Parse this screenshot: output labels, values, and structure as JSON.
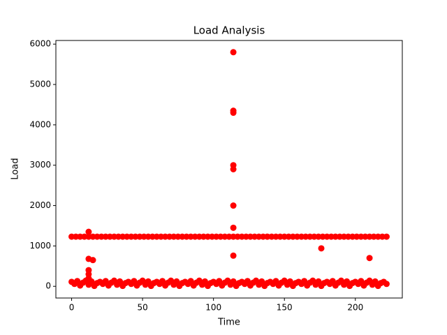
{
  "chart_data": {
    "type": "scatter",
    "title": "Load Analysis",
    "xlabel": "Time",
    "ylabel": "Load",
    "color": "#ff0000",
    "x": [
      0,
      3,
      6,
      9,
      12,
      15,
      18,
      21,
      24,
      27,
      30,
      33,
      36,
      39,
      42,
      45,
      48,
      51,
      54,
      57,
      60,
      63,
      66,
      69,
      72,
      75,
      78,
      81,
      84,
      87,
      90,
      93,
      96,
      99,
      102,
      105,
      108,
      111,
      114,
      117,
      120,
      123,
      126,
      129,
      132,
      135,
      138,
      141,
      144,
      147,
      150,
      153,
      156,
      159,
      162,
      165,
      168,
      171,
      174,
      177,
      180,
      183,
      186,
      189,
      192,
      195,
      198,
      201,
      204,
      207,
      210,
      213,
      216,
      219,
      222,
      0,
      2,
      4,
      6,
      8,
      10,
      12,
      14,
      16,
      18,
      20,
      22,
      24,
      26,
      28,
      30,
      32,
      34,
      36,
      38,
      40,
      42,
      44,
      46,
      48,
      50,
      52,
      54,
      56,
      58,
      60,
      62,
      64,
      66,
      68,
      70,
      72,
      74,
      76,
      78,
      80,
      82,
      84,
      86,
      88,
      90,
      92,
      94,
      96,
      98,
      100,
      102,
      104,
      106,
      108,
      110,
      112,
      114,
      116,
      118,
      120,
      122,
      124,
      126,
      128,
      130,
      132,
      134,
      136,
      138,
      140,
      142,
      144,
      146,
      148,
      150,
      152,
      154,
      156,
      158,
      160,
      162,
      164,
      166,
      168,
      170,
      172,
      174,
      176,
      178,
      180,
      182,
      184,
      186,
      188,
      190,
      192,
      194,
      196,
      198,
      200,
      202,
      204,
      206,
      208,
      210,
      212,
      214,
      216,
      218,
      220,
      222,
      12,
      12,
      12,
      12,
      12,
      15,
      114,
      114,
      114,
      114,
      114,
      114,
      114,
      114,
      176,
      210
    ],
    "values": [
      1230,
      1230,
      1230,
      1230,
      1230,
      1230,
      1230,
      1230,
      1230,
      1230,
      1230,
      1230,
      1230,
      1230,
      1230,
      1230,
      1230,
      1230,
      1230,
      1230,
      1230,
      1230,
      1230,
      1230,
      1230,
      1230,
      1230,
      1230,
      1230,
      1230,
      1230,
      1230,
      1230,
      1230,
      1230,
      1230,
      1230,
      1230,
      1230,
      1230,
      1230,
      1230,
      1230,
      1230,
      1230,
      1230,
      1230,
      1230,
      1230,
      1230,
      1230,
      1230,
      1230,
      1230,
      1230,
      1230,
      1230,
      1230,
      1230,
      1230,
      1230,
      1230,
      1230,
      1230,
      1230,
      1230,
      1230,
      1230,
      1230,
      1230,
      1230,
      1230,
      1230,
      1230,
      1230,
      110,
      60,
      130,
      20,
      90,
      140,
      40,
      120,
      10,
      80,
      110,
      60,
      130,
      20,
      90,
      140,
      40,
      120,
      10,
      80,
      110,
      60,
      130,
      20,
      90,
      140,
      40,
      120,
      10,
      80,
      110,
      60,
      130,
      20,
      90,
      140,
      40,
      120,
      10,
      80,
      110,
      60,
      130,
      20,
      90,
      140,
      40,
      120,
      10,
      80,
      110,
      60,
      130,
      20,
      90,
      140,
      40,
      120,
      10,
      80,
      110,
      60,
      130,
      20,
      90,
      140,
      40,
      120,
      10,
      80,
      110,
      60,
      130,
      20,
      90,
      140,
      40,
      120,
      10,
      80,
      110,
      60,
      130,
      20,
      90,
      140,
      40,
      120,
      10,
      80,
      110,
      60,
      130,
      20,
      90,
      140,
      40,
      120,
      10,
      80,
      110,
      60,
      130,
      20,
      90,
      140,
      40,
      120,
      10,
      80,
      110,
      60,
      1350,
      680,
      400,
      300,
      200,
      650,
      5800,
      4350,
      4300,
      3000,
      2900,
      2000,
      1450,
      760,
      940,
      700
    ],
    "xlim": [
      -11.1,
      233.1
    ],
    "ylim": [
      -290,
      6090
    ],
    "xticks": [
      0,
      50,
      100,
      150,
      200
    ],
    "yticks": [
      0,
      1000,
      2000,
      3000,
      4000,
      5000,
      6000
    ]
  }
}
